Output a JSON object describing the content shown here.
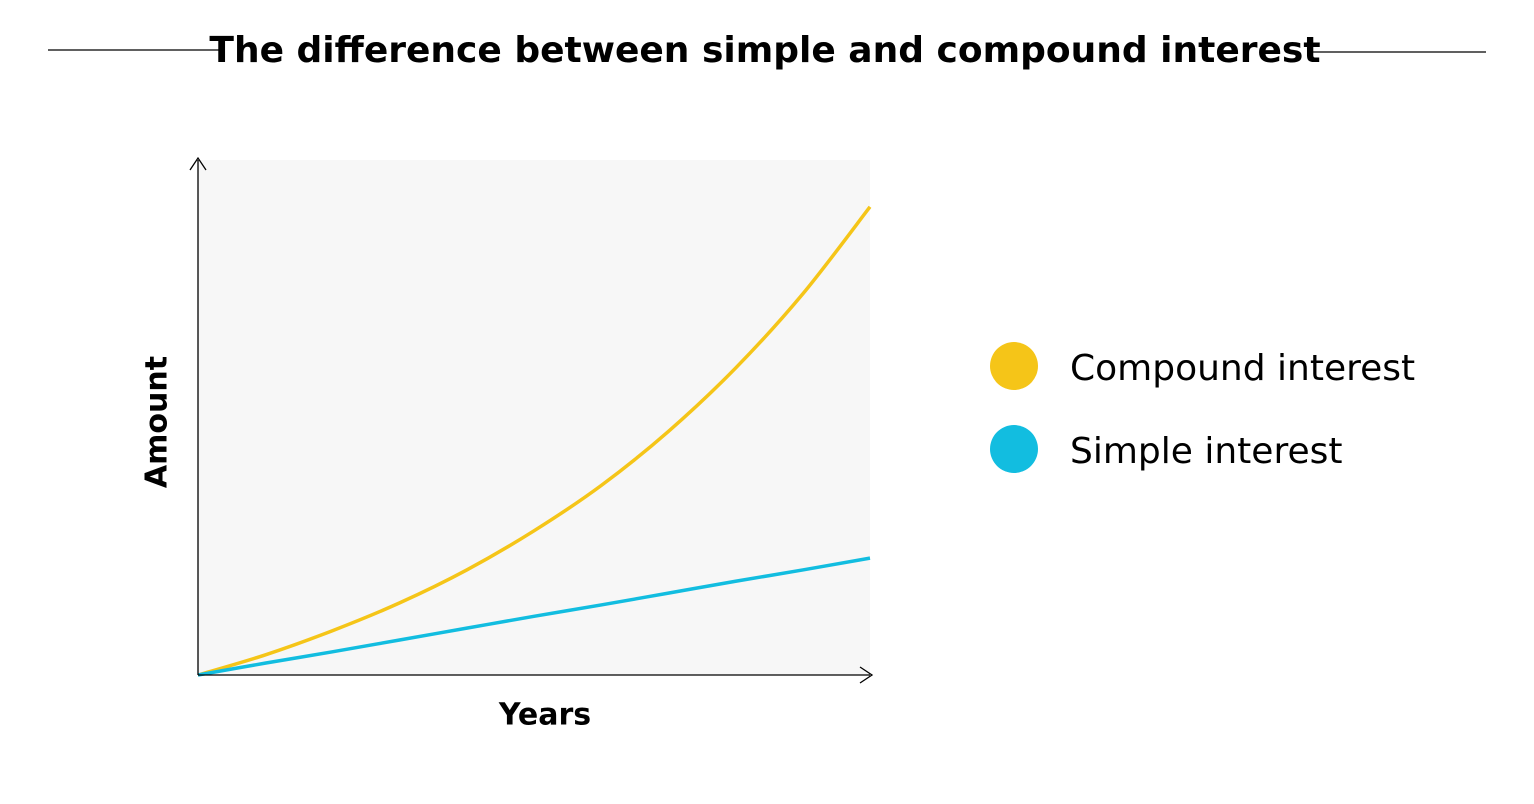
{
  "chart_data": {
    "type": "line",
    "title": "The difference between simple and compound interest",
    "x_label": "Years",
    "y_label": "Amount",
    "x": [
      0,
      1,
      2,
      3,
      4,
      5,
      6,
      7,
      8,
      9,
      10
    ],
    "xlim": [
      0,
      10
    ],
    "ylim": [
      0,
      100
    ],
    "series": [
      {
        "name": "Compound interest",
        "color": "#f5c518",
        "values": [
          0,
          3.9,
          8.6,
          14.0,
          20.4,
          28,
          36.8,
          47.3,
          59.6,
          74.0,
          90.9
        ]
      },
      {
        "name": "Simple interest",
        "color": "#12bde0",
        "values": [
          0,
          2.3,
          4.5,
          6.8,
          9.1,
          11.4,
          13.6,
          15.9,
          18.2,
          20.4,
          22.7
        ]
      }
    ]
  }
}
